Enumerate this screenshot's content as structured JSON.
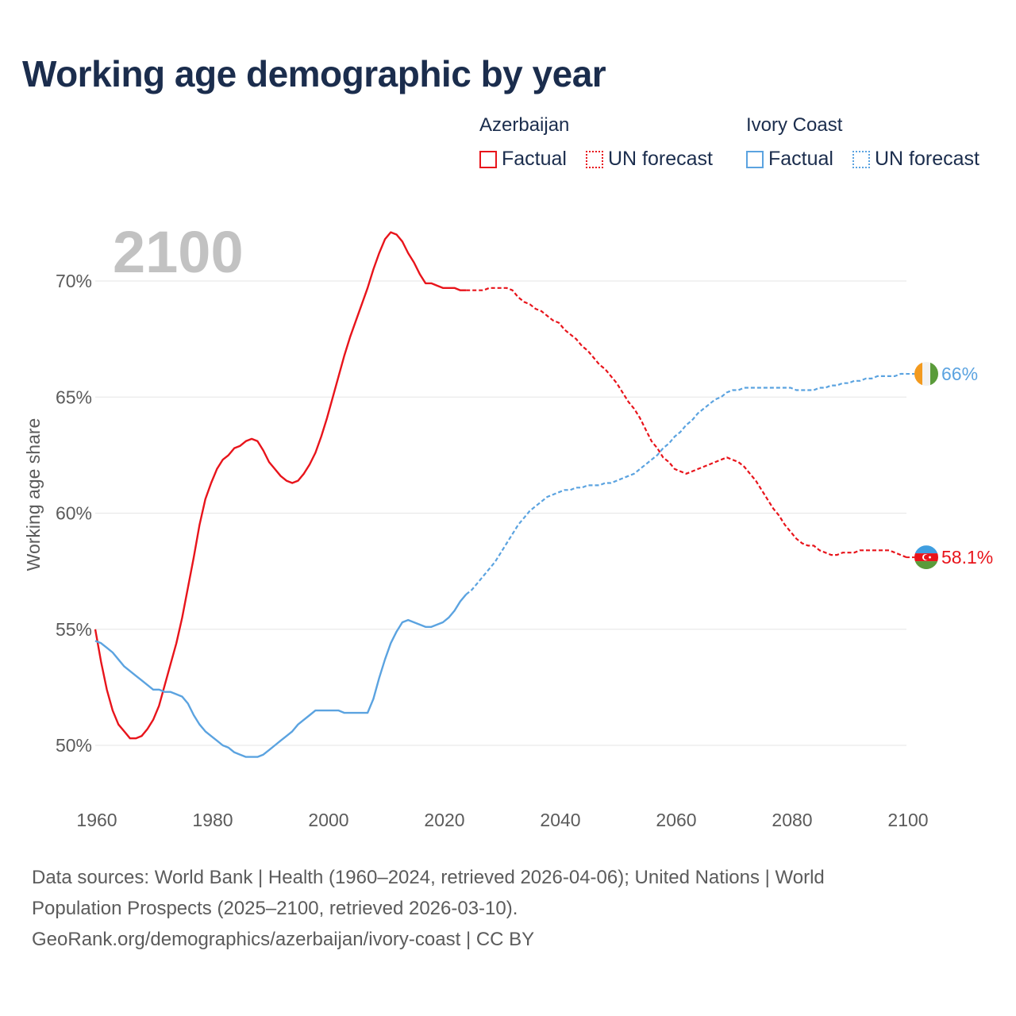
{
  "title": "Working age demographic by year",
  "legend": {
    "groups": [
      {
        "country": "Azerbaijan",
        "color": "#e8141b",
        "factual_label": "Factual",
        "forecast_label": "UN forecast"
      },
      {
        "country": "Ivory Coast",
        "color": "#5ba3e0",
        "factual_label": "Factual",
        "forecast_label": "UN forecast"
      }
    ]
  },
  "chart_data": {
    "type": "line",
    "title": "Working age demographic by year",
    "year_label": "2100",
    "ylabel": "Working age share",
    "xlabel": "",
    "xlim": [
      1960,
      2100
    ],
    "ylim": [
      48,
      72.5
    ],
    "x_ticks": [
      "1960",
      "1980",
      "2000",
      "2020",
      "2040",
      "2060",
      "2080",
      "2100"
    ],
    "y_ticks": [
      {
        "value": 50,
        "label": "50%"
      },
      {
        "value": 55,
        "label": "55%"
      },
      {
        "value": 60,
        "label": "60%"
      },
      {
        "value": 65,
        "label": "65%"
      },
      {
        "value": 70,
        "label": "70%"
      }
    ],
    "grid": true,
    "factual_end_year": 2024,
    "series": [
      {
        "name": "Azerbaijan",
        "color": "#e8141b",
        "end_label": "58.1%",
        "flag_icon": "azerbaijan-flag-icon",
        "points": [
          [
            1960,
            55.0
          ],
          [
            1961,
            53.6
          ],
          [
            1962,
            52.4
          ],
          [
            1963,
            51.5
          ],
          [
            1964,
            50.9
          ],
          [
            1965,
            50.6
          ],
          [
            1966,
            50.3
          ],
          [
            1967,
            50.3
          ],
          [
            1968,
            50.4
          ],
          [
            1969,
            50.7
          ],
          [
            1970,
            51.1
          ],
          [
            1971,
            51.7
          ],
          [
            1972,
            52.6
          ],
          [
            1973,
            53.5
          ],
          [
            1974,
            54.4
          ],
          [
            1975,
            55.5
          ],
          [
            1976,
            56.8
          ],
          [
            1977,
            58.1
          ],
          [
            1978,
            59.5
          ],
          [
            1979,
            60.6
          ],
          [
            1980,
            61.3
          ],
          [
            1981,
            61.9
          ],
          [
            1982,
            62.3
          ],
          [
            1983,
            62.5
          ],
          [
            1984,
            62.8
          ],
          [
            1985,
            62.9
          ],
          [
            1986,
            63.1
          ],
          [
            1987,
            63.2
          ],
          [
            1988,
            63.1
          ],
          [
            1989,
            62.7
          ],
          [
            1990,
            62.2
          ],
          [
            1991,
            61.9
          ],
          [
            1992,
            61.6
          ],
          [
            1993,
            61.4
          ],
          [
            1994,
            61.3
          ],
          [
            1995,
            61.4
          ],
          [
            1996,
            61.7
          ],
          [
            1997,
            62.1
          ],
          [
            1998,
            62.6
          ],
          [
            1999,
            63.3
          ],
          [
            2000,
            64.1
          ],
          [
            2001,
            65.0
          ],
          [
            2002,
            65.9
          ],
          [
            2003,
            66.8
          ],
          [
            2004,
            67.6
          ],
          [
            2005,
            68.3
          ],
          [
            2006,
            69.0
          ],
          [
            2007,
            69.7
          ],
          [
            2008,
            70.5
          ],
          [
            2009,
            71.2
          ],
          [
            2010,
            71.8
          ],
          [
            2011,
            72.1
          ],
          [
            2012,
            72.0
          ],
          [
            2013,
            71.7
          ],
          [
            2014,
            71.2
          ],
          [
            2015,
            70.8
          ],
          [
            2016,
            70.3
          ],
          [
            2017,
            69.9
          ],
          [
            2018,
            69.9
          ],
          [
            2019,
            69.8
          ],
          [
            2020,
            69.7
          ],
          [
            2021,
            69.7
          ],
          [
            2022,
            69.7
          ],
          [
            2023,
            69.6
          ],
          [
            2024,
            69.6
          ],
          [
            2025,
            69.6
          ],
          [
            2026,
            69.6
          ],
          [
            2027,
            69.6
          ],
          [
            2028,
            69.7
          ],
          [
            2029,
            69.7
          ],
          [
            2030,
            69.7
          ],
          [
            2031,
            69.7
          ],
          [
            2032,
            69.6
          ],
          [
            2033,
            69.3
          ],
          [
            2034,
            69.1
          ],
          [
            2035,
            69.0
          ],
          [
            2036,
            68.8
          ],
          [
            2037,
            68.7
          ],
          [
            2038,
            68.5
          ],
          [
            2039,
            68.3
          ],
          [
            2040,
            68.2
          ],
          [
            2041,
            67.9
          ],
          [
            2042,
            67.7
          ],
          [
            2043,
            67.5
          ],
          [
            2044,
            67.2
          ],
          [
            2045,
            67.0
          ],
          [
            2046,
            66.7
          ],
          [
            2047,
            66.4
          ],
          [
            2048,
            66.2
          ],
          [
            2049,
            65.9
          ],
          [
            2050,
            65.6
          ],
          [
            2051,
            65.2
          ],
          [
            2052,
            64.8
          ],
          [
            2053,
            64.5
          ],
          [
            2054,
            64.1
          ],
          [
            2055,
            63.6
          ],
          [
            2056,
            63.1
          ],
          [
            2057,
            62.8
          ],
          [
            2058,
            62.4
          ],
          [
            2059,
            62.2
          ],
          [
            2060,
            61.9
          ],
          [
            2061,
            61.8
          ],
          [
            2062,
            61.7
          ],
          [
            2063,
            61.8
          ],
          [
            2064,
            61.9
          ],
          [
            2065,
            62.0
          ],
          [
            2066,
            62.1
          ],
          [
            2067,
            62.2
          ],
          [
            2068,
            62.3
          ],
          [
            2069,
            62.4
          ],
          [
            2070,
            62.3
          ],
          [
            2071,
            62.2
          ],
          [
            2072,
            62.0
          ],
          [
            2073,
            61.7
          ],
          [
            2074,
            61.4
          ],
          [
            2075,
            61.0
          ],
          [
            2076,
            60.6
          ],
          [
            2077,
            60.2
          ],
          [
            2078,
            59.9
          ],
          [
            2079,
            59.5
          ],
          [
            2080,
            59.2
          ],
          [
            2081,
            58.9
          ],
          [
            2082,
            58.7
          ],
          [
            2083,
            58.6
          ],
          [
            2084,
            58.6
          ],
          [
            2085,
            58.4
          ],
          [
            2086,
            58.3
          ],
          [
            2087,
            58.2
          ],
          [
            2088,
            58.2
          ],
          [
            2089,
            58.3
          ],
          [
            2090,
            58.3
          ],
          [
            2091,
            58.3
          ],
          [
            2092,
            58.4
          ],
          [
            2093,
            58.4
          ],
          [
            2094,
            58.4
          ],
          [
            2095,
            58.4
          ],
          [
            2096,
            58.4
          ],
          [
            2097,
            58.4
          ],
          [
            2098,
            58.3
          ],
          [
            2099,
            58.2
          ],
          [
            2100,
            58.1
          ]
        ]
      },
      {
        "name": "Ivory Coast",
        "color": "#5ba3e0",
        "end_label": "66%",
        "flag_icon": "ivory-coast-flag-icon",
        "points": [
          [
            1960,
            54.5
          ],
          [
            1961,
            54.4
          ],
          [
            1962,
            54.2
          ],
          [
            1963,
            54.0
          ],
          [
            1964,
            53.7
          ],
          [
            1965,
            53.4
          ],
          [
            1966,
            53.2
          ],
          [
            1967,
            53.0
          ],
          [
            1968,
            52.8
          ],
          [
            1969,
            52.6
          ],
          [
            1970,
            52.4
          ],
          [
            1971,
            52.4
          ],
          [
            1972,
            52.3
          ],
          [
            1973,
            52.3
          ],
          [
            1974,
            52.2
          ],
          [
            1975,
            52.1
          ],
          [
            1976,
            51.8
          ],
          [
            1977,
            51.3
          ],
          [
            1978,
            50.9
          ],
          [
            1979,
            50.6
          ],
          [
            1980,
            50.4
          ],
          [
            1981,
            50.2
          ],
          [
            1982,
            50.0
          ],
          [
            1983,
            49.9
          ],
          [
            1984,
            49.7
          ],
          [
            1985,
            49.6
          ],
          [
            1986,
            49.5
          ],
          [
            1987,
            49.5
          ],
          [
            1988,
            49.5
          ],
          [
            1989,
            49.6
          ],
          [
            1990,
            49.8
          ],
          [
            1991,
            50.0
          ],
          [
            1992,
            50.2
          ],
          [
            1993,
            50.4
          ],
          [
            1994,
            50.6
          ],
          [
            1995,
            50.9
          ],
          [
            1996,
            51.1
          ],
          [
            1997,
            51.3
          ],
          [
            1998,
            51.5
          ],
          [
            1999,
            51.5
          ],
          [
            2000,
            51.5
          ],
          [
            2001,
            51.5
          ],
          [
            2002,
            51.5
          ],
          [
            2003,
            51.4
          ],
          [
            2004,
            51.4
          ],
          [
            2005,
            51.4
          ],
          [
            2006,
            51.4
          ],
          [
            2007,
            51.4
          ],
          [
            2008,
            52.0
          ],
          [
            2009,
            52.9
          ],
          [
            2010,
            53.7
          ],
          [
            2011,
            54.4
          ],
          [
            2012,
            54.9
          ],
          [
            2013,
            55.3
          ],
          [
            2014,
            55.4
          ],
          [
            2015,
            55.3
          ],
          [
            2016,
            55.2
          ],
          [
            2017,
            55.1
          ],
          [
            2018,
            55.1
          ],
          [
            2019,
            55.2
          ],
          [
            2020,
            55.3
          ],
          [
            2021,
            55.5
          ],
          [
            2022,
            55.8
          ],
          [
            2023,
            56.2
          ],
          [
            2024,
            56.5
          ],
          [
            2025,
            56.7
          ],
          [
            2026,
            57.0
          ],
          [
            2027,
            57.3
          ],
          [
            2028,
            57.6
          ],
          [
            2029,
            57.9
          ],
          [
            2030,
            58.3
          ],
          [
            2031,
            58.7
          ],
          [
            2032,
            59.1
          ],
          [
            2033,
            59.5
          ],
          [
            2034,
            59.8
          ],
          [
            2035,
            60.1
          ],
          [
            2036,
            60.3
          ],
          [
            2037,
            60.5
          ],
          [
            2038,
            60.7
          ],
          [
            2039,
            60.8
          ],
          [
            2040,
            60.9
          ],
          [
            2041,
            61.0
          ],
          [
            2042,
            61.0
          ],
          [
            2043,
            61.1
          ],
          [
            2044,
            61.1
          ],
          [
            2045,
            61.2
          ],
          [
            2046,
            61.2
          ],
          [
            2047,
            61.2
          ],
          [
            2048,
            61.3
          ],
          [
            2049,
            61.3
          ],
          [
            2050,
            61.4
          ],
          [
            2051,
            61.5
          ],
          [
            2052,
            61.6
          ],
          [
            2053,
            61.7
          ],
          [
            2054,
            61.9
          ],
          [
            2055,
            62.1
          ],
          [
            2056,
            62.3
          ],
          [
            2057,
            62.5
          ],
          [
            2058,
            62.8
          ],
          [
            2059,
            63.0
          ],
          [
            2060,
            63.3
          ],
          [
            2061,
            63.5
          ],
          [
            2062,
            63.8
          ],
          [
            2063,
            64.0
          ],
          [
            2064,
            64.3
          ],
          [
            2065,
            64.5
          ],
          [
            2066,
            64.7
          ],
          [
            2067,
            64.9
          ],
          [
            2068,
            65.0
          ],
          [
            2069,
            65.2
          ],
          [
            2070,
            65.3
          ],
          [
            2071,
            65.3
          ],
          [
            2072,
            65.4
          ],
          [
            2073,
            65.4
          ],
          [
            2074,
            65.4
          ],
          [
            2075,
            65.4
          ],
          [
            2076,
            65.4
          ],
          [
            2077,
            65.4
          ],
          [
            2078,
            65.4
          ],
          [
            2079,
            65.4
          ],
          [
            2080,
            65.4
          ],
          [
            2081,
            65.3
          ],
          [
            2082,
            65.3
          ],
          [
            2083,
            65.3
          ],
          [
            2084,
            65.3
          ],
          [
            2085,
            65.4
          ],
          [
            2086,
            65.4
          ],
          [
            2087,
            65.5
          ],
          [
            2088,
            65.5
          ],
          [
            2089,
            65.6
          ],
          [
            2090,
            65.6
          ],
          [
            2091,
            65.7
          ],
          [
            2092,
            65.7
          ],
          [
            2093,
            65.8
          ],
          [
            2094,
            65.8
          ],
          [
            2095,
            65.9
          ],
          [
            2096,
            65.9
          ],
          [
            2097,
            65.9
          ],
          [
            2098,
            65.9
          ],
          [
            2099,
            66.0
          ],
          [
            2100,
            66.0
          ]
        ]
      }
    ]
  },
  "footer": {
    "line1": "Data sources: World Bank | Health (1960–2024, retrieved 2026-04-06); United Nations | World",
    "line2": "Population Prospects (2025–2100, retrieved 2026-03-10).",
    "line3": "GeoRank.org/demographics/azerbaijan/ivory-coast | CC BY"
  }
}
